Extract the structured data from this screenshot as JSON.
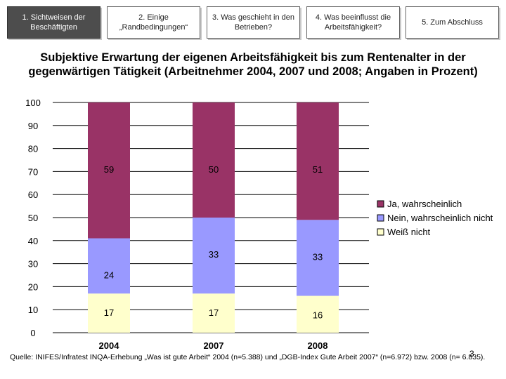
{
  "nav": {
    "tabs": [
      {
        "label": "1. Sichtweisen der Beschäftigten",
        "active": true
      },
      {
        "label": "2. Einige „Randbedingungen“",
        "active": false
      },
      {
        "label": "3. Was geschieht in den Betrieben?",
        "active": false
      },
      {
        "label": "4. Was beeinflusst die Arbeitsfähigkeit?",
        "active": false
      },
      {
        "label": "5. Zum Abschluss",
        "active": false
      }
    ]
  },
  "title": "Subjektive Erwartung der eigenen Arbeitsfähigkeit bis zum Rentenalter in der gegenwärtigen Tätigkeit (Arbeitnehmer 2004, 2007 und 2008; Angaben in Prozent)",
  "chart_data": {
    "type": "bar",
    "stacked": true,
    "categories": [
      "2004",
      "2007",
      "2008"
    ],
    "series": [
      {
        "name": "Weiß nicht",
        "values": [
          17,
          17,
          16
        ],
        "color": "#ffffcc"
      },
      {
        "name": "Nein, wahrscheinlich nicht",
        "values": [
          24,
          33,
          33
        ],
        "color": "#9999ff"
      },
      {
        "name": "Ja, wahrscheinlich",
        "values": [
          59,
          50,
          51
        ],
        "color": "#993366"
      }
    ],
    "legend_order": [
      "Ja, wahrscheinlich",
      "Nein, wahrscheinlich nicht",
      "Weiß nicht"
    ],
    "ylim": [
      0,
      100
    ],
    "yticks": [
      "0",
      "10",
      "20",
      "30",
      "40",
      "50",
      "60",
      "70",
      "80",
      "90",
      "100"
    ],
    "grid": true,
    "legend_position": "right"
  },
  "source": "Quelle: INIFES/Infratest INQA-Erhebung „Was ist gute Arbeit“ 2004 (n=5.388) und „DGB-Index Gute Arbeit 2007“ (n=6.972) bzw. 2008 (n= 6.835).",
  "page_number": "3"
}
